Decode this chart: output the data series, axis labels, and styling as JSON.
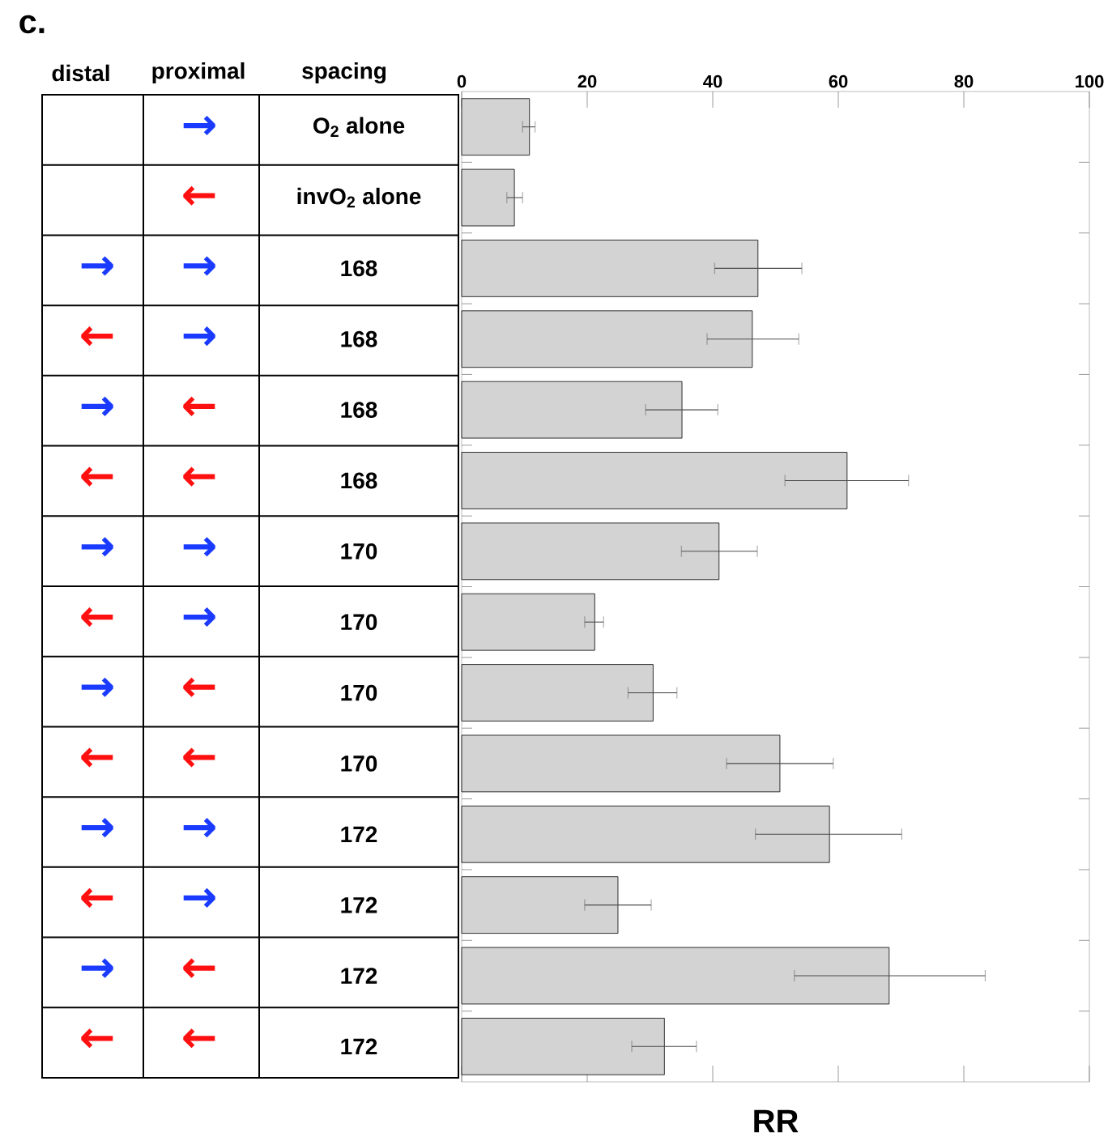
{
  "chart_data": {
    "type": "bar",
    "orientation": "horizontal",
    "xlabel": "RR",
    "categories": [
      "O$_{2}$ alone",
      "invO$_{2}$ alone",
      "168",
      "168",
      "168",
      "168",
      "170",
      "170",
      "170",
      "170",
      "172",
      "172",
      "172",
      "172"
    ],
    "values": [
      10.8,
      8.4,
      47.2,
      46.3,
      35.1,
      61.4,
      41.0,
      21.2,
      30.5,
      50.7,
      58.6,
      24.9,
      68.1,
      32.3
    ],
    "errors": [
      [
        9.7,
        11.7
      ],
      [
        7.2,
        9.7
      ],
      [
        40.3,
        54.2
      ],
      [
        39.1,
        53.7
      ],
      [
        29.3,
        40.8
      ],
      [
        51.5,
        71.2
      ],
      [
        35.0,
        47.1
      ],
      [
        19.6,
        22.6
      ],
      [
        26.5,
        34.3
      ],
      [
        42.2,
        59.2
      ],
      [
        46.8,
        70.1
      ],
      [
        19.6,
        30.2
      ],
      [
        53.0,
        83.4
      ],
      [
        27.1,
        37.4
      ]
    ],
    "color": "#d3d3d3",
    "xlim": [
      0,
      100
    ],
    "xticks": [
      0,
      20,
      40,
      60,
      80,
      100
    ],
    "annotations": [
      "c.",
      "distal",
      "proximal",
      "spacing",
      "→",
      "←",
      "→",
      "→",
      "←",
      "→",
      "→",
      "←",
      "←",
      "←",
      "→",
      "→",
      "←",
      "→",
      "→",
      "←",
      "←",
      "←",
      "→",
      "→",
      "←",
      "→",
      "→",
      "←",
      "←",
      "←"
    ]
  }
}
